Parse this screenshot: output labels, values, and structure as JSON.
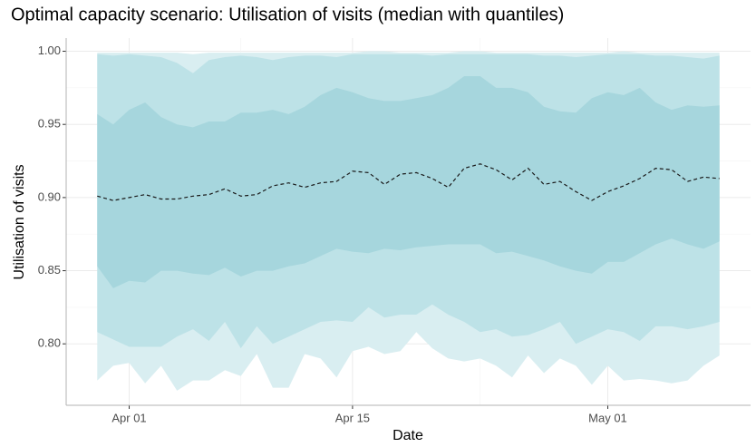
{
  "chart_data": {
    "type": "ribbon",
    "title": "Optimal capacity scenario: Utilisation of visits (median with quantiles)",
    "x_label": "Date",
    "y_label": "Utilisation of visits",
    "categories": [
      "Mar 30",
      "Mar 31",
      "Apr 01",
      "Apr 02",
      "Apr 03",
      "Apr 04",
      "Apr 05",
      "Apr 06",
      "Apr 07",
      "Apr 08",
      "Apr 09",
      "Apr 10",
      "Apr 11",
      "Apr 12",
      "Apr 13",
      "Apr 14",
      "Apr 15",
      "Apr 16",
      "Apr 17",
      "Apr 18",
      "Apr 19",
      "Apr 20",
      "Apr 21",
      "Apr 22",
      "Apr 23",
      "Apr 24",
      "Apr 25",
      "Apr 26",
      "Apr 27",
      "Apr 28",
      "Apr 29",
      "Apr 30",
      "May 01",
      "May 02",
      "May 03",
      "May 04",
      "May 05",
      "May 06",
      "May 07",
      "May 08"
    ],
    "xticks": [
      "Apr 01",
      "Apr 15",
      "May 01"
    ],
    "ylim": [
      0.758,
      1.009
    ],
    "yticks": [
      {
        "value": 0.8,
        "label": "0.80"
      },
      {
        "value": 0.85,
        "label": "0.85"
      },
      {
        "value": 0.9,
        "label": "0.90"
      },
      {
        "value": 0.95,
        "label": "0.95"
      },
      {
        "value": 1.0,
        "label": "1.00"
      }
    ],
    "grid": true,
    "bands": [
      {
        "color": "#d9eef1",
        "lower": [
          0.775,
          0.785,
          0.787,
          0.773,
          0.785,
          0.768,
          0.775,
          0.775,
          0.782,
          0.778,
          0.793,
          0.77,
          0.77,
          0.793,
          0.79,
          0.777,
          0.795,
          0.798,
          0.793,
          0.795,
          0.808,
          0.797,
          0.79,
          0.788,
          0.79,
          0.785,
          0.777,
          0.792,
          0.78,
          0.79,
          0.785,
          0.772,
          0.785,
          0.775,
          0.776,
          0.775,
          0.773,
          0.775,
          0.785,
          0.792
        ],
        "upper": [
          0.999,
          0.999,
          0.999,
          0.999,
          0.999,
          0.999,
          0.998,
          0.999,
          0.999,
          0.999,
          0.999,
          0.999,
          0.999,
          0.999,
          0.999,
          0.999,
          0.999,
          1.0,
          1.0,
          0.999,
          0.999,
          0.999,
          0.999,
          1.0,
          1.0,
          0.999,
          0.999,
          0.999,
          0.999,
          0.999,
          0.999,
          0.999,
          0.999,
          1.0,
          0.999,
          0.999,
          0.999,
          0.999,
          0.999,
          0.999
        ]
      },
      {
        "color": "#bde2e7",
        "lower": [
          0.808,
          0.803,
          0.798,
          0.798,
          0.798,
          0.805,
          0.81,
          0.802,
          0.815,
          0.797,
          0.812,
          0.8,
          0.805,
          0.81,
          0.815,
          0.816,
          0.815,
          0.825,
          0.818,
          0.82,
          0.82,
          0.827,
          0.82,
          0.815,
          0.808,
          0.81,
          0.805,
          0.806,
          0.81,
          0.815,
          0.8,
          0.805,
          0.81,
          0.808,
          0.802,
          0.812,
          0.812,
          0.81,
          0.812,
          0.815
        ],
        "upper": [
          0.998,
          0.997,
          0.998,
          0.997,
          0.996,
          0.992,
          0.985,
          0.994,
          0.996,
          0.997,
          0.996,
          0.994,
          0.996,
          0.997,
          0.997,
          0.996,
          0.998,
          0.998,
          0.998,
          0.998,
          0.998,
          0.997,
          0.998,
          0.998,
          0.998,
          0.998,
          0.998,
          0.998,
          0.997,
          0.997,
          0.996,
          0.997,
          0.998,
          0.998,
          0.998,
          0.997,
          0.997,
          0.996,
          0.995,
          0.997
        ]
      },
      {
        "color": "#a6d6dd",
        "lower": [
          0.853,
          0.838,
          0.843,
          0.842,
          0.85,
          0.85,
          0.848,
          0.847,
          0.852,
          0.846,
          0.85,
          0.85,
          0.853,
          0.855,
          0.86,
          0.865,
          0.863,
          0.862,
          0.865,
          0.864,
          0.866,
          0.867,
          0.868,
          0.868,
          0.868,
          0.862,
          0.863,
          0.86,
          0.857,
          0.853,
          0.85,
          0.848,
          0.856,
          0.856,
          0.862,
          0.868,
          0.872,
          0.868,
          0.865,
          0.87
        ],
        "upper": [
          0.957,
          0.95,
          0.96,
          0.965,
          0.955,
          0.95,
          0.948,
          0.952,
          0.952,
          0.958,
          0.958,
          0.96,
          0.957,
          0.962,
          0.97,
          0.975,
          0.972,
          0.968,
          0.966,
          0.966,
          0.968,
          0.97,
          0.975,
          0.983,
          0.983,
          0.975,
          0.975,
          0.972,
          0.962,
          0.959,
          0.958,
          0.968,
          0.972,
          0.97,
          0.975,
          0.965,
          0.96,
          0.963,
          0.962,
          0.963
        ]
      }
    ],
    "median": {
      "color": "#1a1a1a",
      "values": [
        0.901,
        0.898,
        0.9,
        0.902,
        0.899,
        0.899,
        0.901,
        0.902,
        0.906,
        0.901,
        0.902,
        0.908,
        0.91,
        0.907,
        0.91,
        0.911,
        0.918,
        0.917,
        0.909,
        0.916,
        0.917,
        0.913,
        0.907,
        0.92,
        0.923,
        0.919,
        0.912,
        0.92,
        0.909,
        0.911,
        0.904,
        0.898,
        0.904,
        0.908,
        0.913,
        0.92,
        0.919,
        0.911,
        0.914,
        0.913
      ]
    }
  }
}
